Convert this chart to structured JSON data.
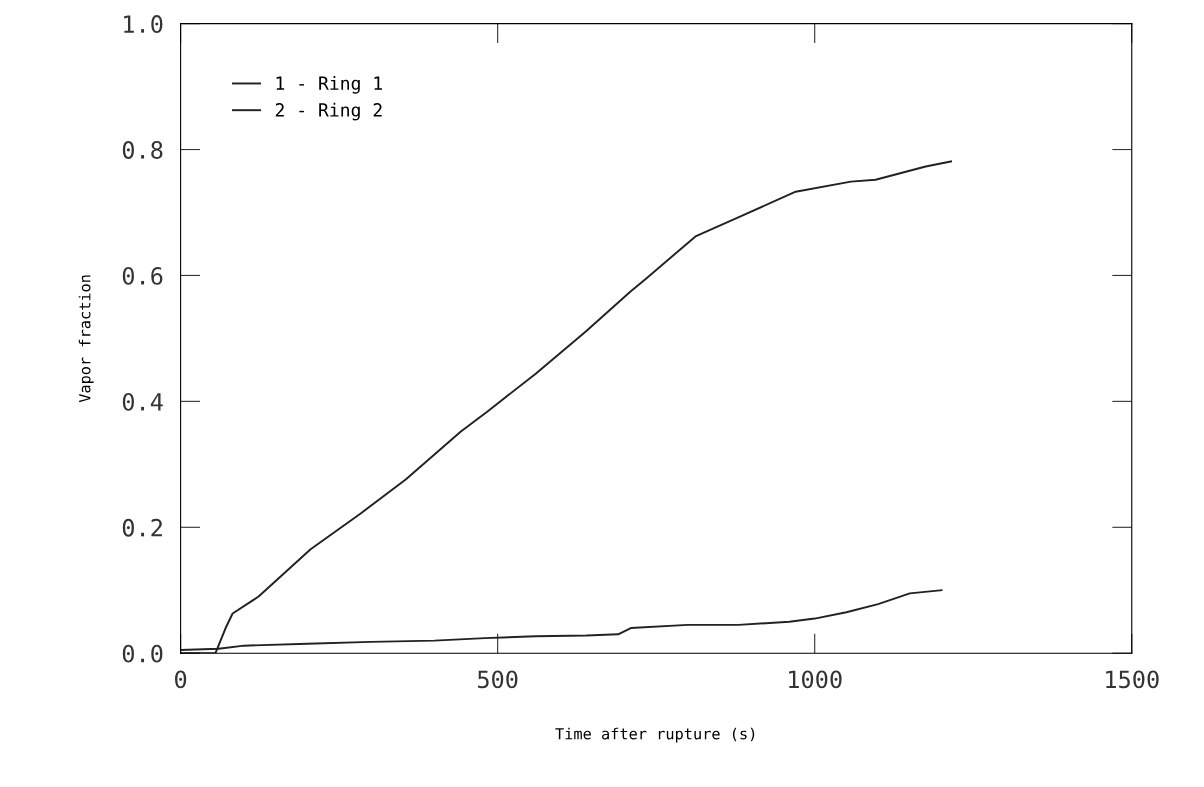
{
  "chart_data": {
    "type": "line",
    "xlabel": "Time after rupture (s)",
    "ylabel": "Vapor fraction",
    "xlim": [
      0,
      1500
    ],
    "xticks": [
      0,
      500,
      1000,
      1500
    ],
    "ylim": [
      0,
      1.0
    ],
    "yticks": [
      {
        "value": 0,
        "label": "0.0"
      },
      {
        "value": 0.2,
        "label": "0.2"
      },
      {
        "value": 0.4,
        "label": "0.4"
      },
      {
        "value": 0.6,
        "label": "0.6"
      },
      {
        "value": 0.8,
        "label": "0.8"
      },
      {
        "value": 1.0,
        "label": "1.0"
      }
    ],
    "grid": false,
    "legend": "top left",
    "series": [
      {
        "name": "1 - Ring 1",
        "color": "#222222",
        "x": [
          0,
          60,
          100,
          200,
          300,
          400,
          480,
          560,
          640,
          690,
          710,
          800,
          880,
          960,
          1000,
          1050,
          1100,
          1150,
          1200
        ],
        "values": [
          0.005,
          0.007,
          0.012,
          0.015,
          0.018,
          0.02,
          0.024,
          0.027,
          0.028,
          0.03,
          0.04,
          0.045,
          0.045,
          0.05,
          0.055,
          0.065,
          0.078,
          0.095,
          0.1
        ]
      },
      {
        "name": "2 - Ring 2",
        "color": "#222222",
        "x": [
          0,
          55,
          71,
          82,
          123,
          205,
          284,
          355,
          442,
          484,
          560,
          639,
          710,
          733,
          812,
          883,
          970,
          1057,
          1096,
          1175,
          1215
        ],
        "values": [
          0,
          0,
          0.04,
          0.063,
          0.09,
          0.165,
          0.222,
          0.276,
          0.352,
          0.384,
          0.444,
          0.511,
          0.575,
          0.594,
          0.662,
          0.694,
          0.733,
          0.749,
          0.752,
          0.773,
          0.781
        ]
      }
    ]
  }
}
